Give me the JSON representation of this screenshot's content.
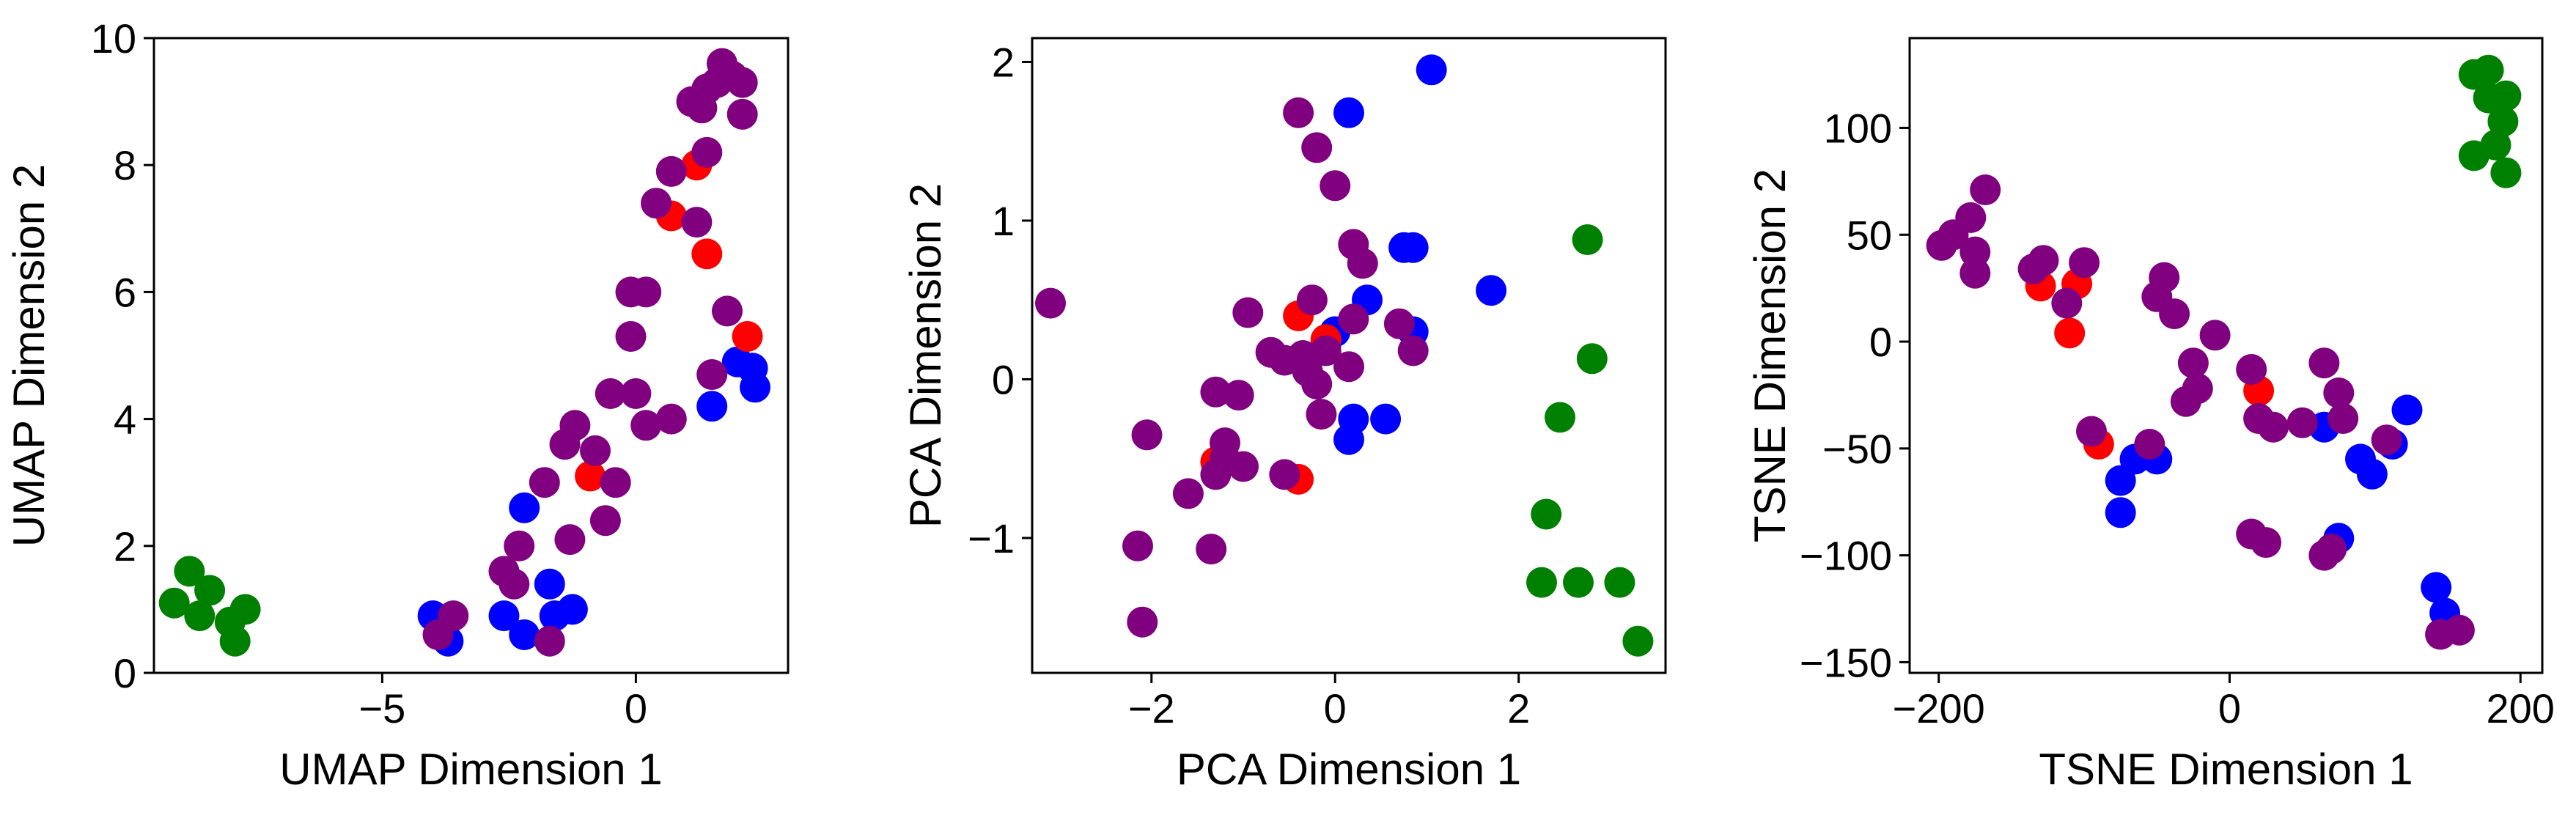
{
  "chart_data": [
    {
      "type": "scatter",
      "xlabel": "UMAP Dimension 1",
      "ylabel": "UMAP Dimension 2",
      "xlim": [
        -9.5,
        3.0
      ],
      "ylim": [
        0,
        10
      ],
      "xticks": [
        -5,
        0
      ],
      "yticks": [
        0,
        2,
        4,
        6,
        8,
        10
      ],
      "xtick_labels": [
        "−5",
        "0"
      ],
      "ytick_labels": [
        "0",
        "2",
        "4",
        "6",
        "8",
        "10"
      ],
      "series": [
        {
          "color": "#0000ff",
          "points": [
            [
              -4.0,
              0.9
            ],
            [
              -3.7,
              0.5
            ],
            [
              -2.6,
              0.9
            ],
            [
              -2.2,
              0.6
            ],
            [
              -1.7,
              1.4
            ],
            [
              -1.6,
              0.9
            ],
            [
              -1.25,
              1.0
            ],
            [
              -2.2,
              2.6
            ],
            [
              1.5,
              4.2
            ],
            [
              2.0,
              4.9
            ],
            [
              2.3,
              4.8
            ],
            [
              2.35,
              4.5
            ]
          ]
        },
        {
          "color": "#ff0000",
          "points": [
            [
              -0.9,
              3.1
            ],
            [
              1.2,
              8.0
            ],
            [
              0.7,
              7.2
            ],
            [
              1.4,
              6.6
            ],
            [
              2.2,
              5.3
            ]
          ]
        },
        {
          "color": "#800080",
          "points": [
            [
              -3.9,
              0.6
            ],
            [
              -3.6,
              0.9
            ],
            [
              -2.6,
              1.6
            ],
            [
              -2.4,
              1.4
            ],
            [
              -2.3,
              2.0
            ],
            [
              -1.7,
              0.5
            ],
            [
              -1.8,
              3.0
            ],
            [
              -1.4,
              3.6
            ],
            [
              -1.2,
              3.9
            ],
            [
              -1.3,
              2.1
            ],
            [
              -0.8,
              3.5
            ],
            [
              -0.6,
              2.4
            ],
            [
              -0.4,
              3.0
            ],
            [
              -0.5,
              4.4
            ],
            [
              -0.1,
              5.3
            ],
            [
              -0.1,
              6.0
            ],
            [
              0.2,
              6.0
            ],
            [
              0.0,
              4.4
            ],
            [
              0.2,
              3.9
            ],
            [
              0.7,
              4.0
            ],
            [
              0.4,
              7.4
            ],
            [
              0.7,
              7.9
            ],
            [
              1.2,
              7.1
            ],
            [
              1.4,
              8.2
            ],
            [
              1.1,
              9.0
            ],
            [
              1.4,
              9.2
            ],
            [
              1.7,
              9.6
            ],
            [
              1.9,
              9.4
            ],
            [
              1.6,
              9.3
            ],
            [
              1.3,
              8.9
            ],
            [
              2.1,
              8.8
            ],
            [
              2.1,
              9.3
            ],
            [
              1.8,
              5.7
            ],
            [
              1.5,
              4.7
            ]
          ]
        },
        {
          "color": "#008000",
          "points": [
            [
              -9.1,
              1.1
            ],
            [
              -8.8,
              1.6
            ],
            [
              -8.6,
              0.9
            ],
            [
              -8.4,
              1.3
            ],
            [
              -8.0,
              0.8
            ],
            [
              -7.7,
              1.0
            ],
            [
              -7.9,
              0.5
            ]
          ]
        }
      ]
    },
    {
      "type": "scatter",
      "xlabel": "PCA Dimension 1",
      "ylabel": "PCA Dimension 2",
      "xlim": [
        -3.3,
        3.6
      ],
      "ylim": [
        -1.85,
        2.15
      ],
      "xticks": [
        -2,
        0,
        2
      ],
      "yticks": [
        -1,
        0,
        1,
        2
      ],
      "xtick_labels": [
        "−2",
        "0",
        "2"
      ],
      "ytick_labels": [
        "−1",
        "0",
        "1",
        "2"
      ],
      "series": [
        {
          "color": "#0000ff",
          "points": [
            [
              1.05,
              1.95
            ],
            [
              0.15,
              1.68
            ],
            [
              0.75,
              0.83
            ],
            [
              0.85,
              0.83
            ],
            [
              0.35,
              0.5
            ],
            [
              1.7,
              0.56
            ],
            [
              0.0,
              0.3
            ],
            [
              0.85,
              0.3
            ],
            [
              0.2,
              -0.25
            ],
            [
              0.55,
              -0.25
            ],
            [
              0.15,
              -0.38
            ],
            [
              -0.1,
              0.22
            ]
          ]
        },
        {
          "color": "#ff0000",
          "points": [
            [
              -0.4,
              0.4
            ],
            [
              -0.1,
              0.25
            ],
            [
              -1.3,
              -0.52
            ],
            [
              -0.4,
              -0.63
            ]
          ]
        },
        {
          "color": "#800080",
          "points": [
            [
              -3.1,
              0.48
            ],
            [
              -2.05,
              -0.35
            ],
            [
              -2.15,
              -1.05
            ],
            [
              -2.1,
              -1.53
            ],
            [
              -1.6,
              -0.72
            ],
            [
              -1.3,
              -0.08
            ],
            [
              -1.35,
              -1.07
            ],
            [
              -1.3,
              -0.6
            ],
            [
              -1.2,
              -0.4
            ],
            [
              -1.2,
              -0.5
            ],
            [
              -1.05,
              -0.1
            ],
            [
              -1.0,
              -0.55
            ],
            [
              -0.95,
              0.42
            ],
            [
              -0.7,
              0.17
            ],
            [
              -0.55,
              0.12
            ],
            [
              -0.55,
              -0.6
            ],
            [
              -0.4,
              1.68
            ],
            [
              -0.35,
              0.15
            ],
            [
              -0.3,
              0.05
            ],
            [
              -0.25,
              0.5
            ],
            [
              -0.2,
              1.46
            ],
            [
              -0.15,
              -0.22
            ],
            [
              -0.1,
              0.18
            ],
            [
              0.0,
              1.22
            ],
            [
              0.15,
              0.08
            ],
            [
              0.2,
              0.85
            ],
            [
              0.3,
              0.73
            ],
            [
              0.2,
              0.38
            ],
            [
              0.7,
              0.35
            ],
            [
              0.85,
              0.18
            ],
            [
              -0.2,
              -0.03
            ]
          ]
        },
        {
          "color": "#008000",
          "points": [
            [
              2.75,
              0.88
            ],
            [
              2.8,
              0.13
            ],
            [
              2.45,
              -0.24
            ],
            [
              2.3,
              -0.85
            ],
            [
              2.25,
              -1.28
            ],
            [
              2.65,
              -1.28
            ],
            [
              3.1,
              -1.28
            ],
            [
              3.3,
              -1.65
            ]
          ]
        }
      ]
    },
    {
      "type": "scatter",
      "xlabel": "TSNE Dimension 1",
      "ylabel": "TSNE Dimension 2",
      "xlim": [
        -220,
        215
      ],
      "ylim": [
        -155,
        142
      ],
      "xticks": [
        -200,
        0,
        200
      ],
      "yticks": [
        -150,
        -100,
        -50,
        0,
        50,
        100
      ],
      "xtick_labels": [
        "−200",
        "0",
        "200"
      ],
      "ytick_labels": [
        "−150",
        "−100",
        "−50",
        "0",
        "50",
        "100"
      ],
      "series": [
        {
          "color": "#0000ff",
          "points": [
            [
              -75,
              -65
            ],
            [
              -75,
              -80
            ],
            [
              -65,
              -55
            ],
            [
              -50,
              -55
            ],
            [
              65,
              -40
            ],
            [
              75,
              -92
            ],
            [
              90,
              -55
            ],
            [
              98,
              -62
            ],
            [
              112,
              -48
            ],
            [
              122,
              -32
            ],
            [
              142,
              -115
            ],
            [
              148,
              -127
            ]
          ]
        },
        {
          "color": "#ff0000",
          "points": [
            [
              -130,
              26
            ],
            [
              -105,
              27
            ],
            [
              -110,
              4
            ],
            [
              -90,
              -48
            ],
            [
              20,
              -23
            ]
          ]
        },
        {
          "color": "#800080",
          "points": [
            [
              -198,
              45
            ],
            [
              -190,
              50
            ],
            [
              -178,
              58
            ],
            [
              -175,
              42
            ],
            [
              -175,
              32
            ],
            [
              -168,
              71
            ],
            [
              -135,
              34
            ],
            [
              -128,
              38
            ],
            [
              -112,
              18
            ],
            [
              -100,
              37
            ],
            [
              -95,
              -42
            ],
            [
              -55,
              -48
            ],
            [
              -50,
              21
            ],
            [
              -45,
              30
            ],
            [
              -38,
              13
            ],
            [
              -30,
              -28
            ],
            [
              -25,
              -10
            ],
            [
              -22,
              -22
            ],
            [
              -10,
              3
            ],
            [
              15,
              -13
            ],
            [
              20,
              -36
            ],
            [
              30,
              -40
            ],
            [
              50,
              -38
            ],
            [
              65,
              -10
            ],
            [
              70,
              -97
            ],
            [
              65,
              -100
            ],
            [
              75,
              -24
            ],
            [
              78,
              -36
            ],
            [
              108,
              -46
            ],
            [
              15,
              -90
            ],
            [
              25,
              -94
            ],
            [
              145,
              -137
            ],
            [
              158,
              -135
            ]
          ]
        },
        {
          "color": "#008000",
          "points": [
            [
              168,
              125
            ],
            [
              178,
              127
            ],
            [
              168,
              87
            ],
            [
              183,
              92
            ],
            [
              188,
              103
            ],
            [
              190,
              115
            ],
            [
              178,
              114
            ],
            [
              190,
              79
            ]
          ]
        }
      ]
    }
  ]
}
